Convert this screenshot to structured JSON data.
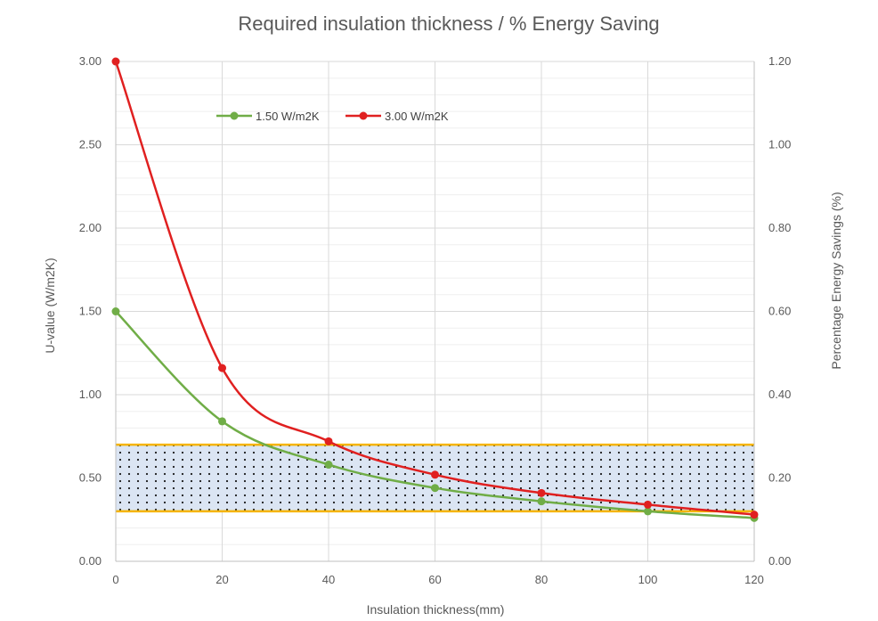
{
  "chart_data": {
    "type": "line",
    "title": "Required insulation thickness / % Energy Saving",
    "xlabel": "Insulation thickness(mm)",
    "ylabel": "U-value (W/m2K)",
    "y2label": "Percentage Energy Savings (%)",
    "x": [
      0,
      20,
      40,
      60,
      80,
      100,
      120
    ],
    "xlim": [
      0,
      120
    ],
    "ylim": [
      0,
      3
    ],
    "y2lim": [
      0,
      1.2
    ],
    "xticks": [
      "0",
      "20",
      "40",
      "60",
      "80",
      "100",
      "120"
    ],
    "yticks": [
      "0.00",
      "0.50",
      "1.00",
      "1.50",
      "2.00",
      "2.50",
      "3.00"
    ],
    "y2ticks": [
      "0.00",
      "0.20",
      "0.40",
      "0.60",
      "0.80",
      "1.00",
      "1.20"
    ],
    "series": [
      {
        "name": "1.50 W/m2K",
        "color": "#70ad47",
        "values": [
          1.5,
          0.84,
          0.58,
          0.44,
          0.36,
          0.3,
          0.26
        ]
      },
      {
        "name": "3.00 W/m2K",
        "color": "#e02020",
        "values": [
          3.0,
          1.16,
          0.72,
          0.52,
          0.41,
          0.34,
          0.28
        ]
      }
    ],
    "band": {
      "low": 0.3,
      "high": 0.7,
      "edge_color": "#f5b400",
      "fill_color": "#dbe5f3"
    },
    "legend_position": "top-left inside plot",
    "grid": true
  }
}
